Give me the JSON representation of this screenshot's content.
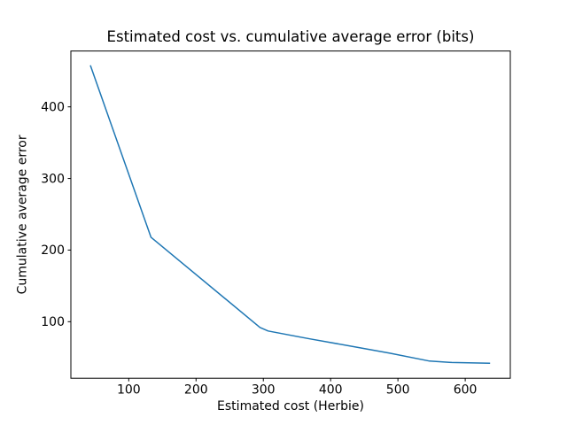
{
  "figure": {
    "background": "#ffffff"
  },
  "chart_data": {
    "type": "line",
    "title": "Estimated cost vs. cumulative average error (bits)",
    "xlabel": "Estimated cost (Herbie)",
    "ylabel": "Cumulative average error",
    "series": [
      {
        "name": "cumulative average error",
        "color": "#1f77b4",
        "line_width": 1.5,
        "x": [
          43,
          133,
          295,
          307,
          369,
          435,
          488,
          547,
          580,
          637
        ],
        "y": [
          458,
          218,
          92,
          87,
          76,
          65,
          56,
          45,
          43,
          42
        ]
      }
    ],
    "xlim": [
      14,
      667
    ],
    "ylim": [
      21,
      478
    ],
    "xticks": [
      100,
      200,
      300,
      400,
      500,
      600
    ],
    "yticks": [
      100,
      200,
      300,
      400
    ],
    "grid": false,
    "legend": "none",
    "spine_color": "#000000",
    "tick_label_color": "#000000"
  }
}
